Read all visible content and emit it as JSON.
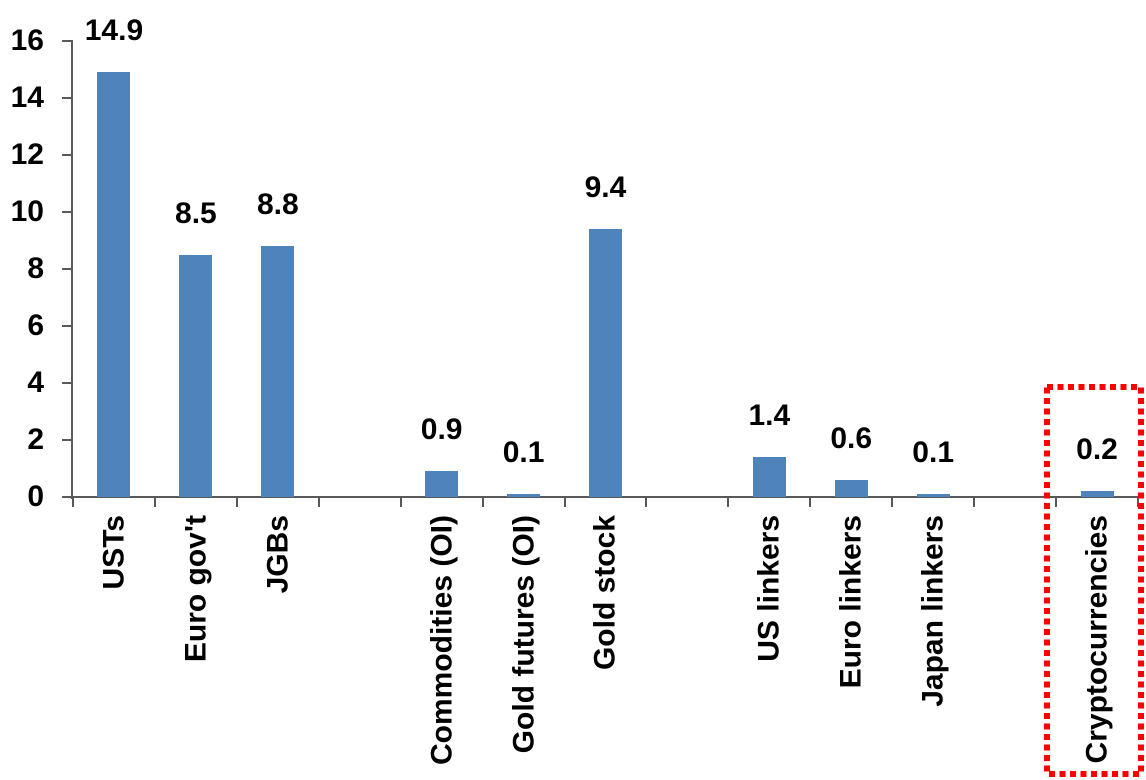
{
  "chart_data": {
    "type": "bar",
    "title": "",
    "xlabel": "",
    "ylabel": "",
    "categories": [
      "USTs",
      "Euro gov't",
      "JGBs",
      "Commodities (OI)",
      "Gold futures (OI)",
      "Gold stock",
      "US linkers",
      "Euro linkers",
      "Japan linkers",
      "Cryptocurrencies"
    ],
    "values": [
      14.9,
      8.5,
      8.8,
      0.9,
      0.1,
      9.4,
      1.4,
      0.6,
      0.1,
      0.2
    ],
    "data_labels": [
      "14.9",
      "8.5",
      "8.8",
      "0.9",
      "0.1",
      "9.4",
      "1.4",
      "0.6",
      "0.1",
      "0.2"
    ],
    "slots": [
      0,
      1,
      2,
      4,
      5,
      6,
      8,
      9,
      10,
      12
    ],
    "total_slots": 13,
    "group_gaps_after": [
      "JGBs",
      "Gold stock",
      "Japan linkers"
    ],
    "y_ticks": [
      0,
      2,
      4,
      6,
      8,
      10,
      12,
      14,
      16
    ],
    "ylim": [
      0,
      16
    ],
    "grid": false,
    "legend": false,
    "highlight": {
      "category": "Cryptocurrencies",
      "style": "red-dotted-box"
    },
    "colors": {
      "bar": "#4E84BB",
      "axis": "#595959",
      "text": "#000000",
      "highlight_box": "#FF0000"
    }
  }
}
